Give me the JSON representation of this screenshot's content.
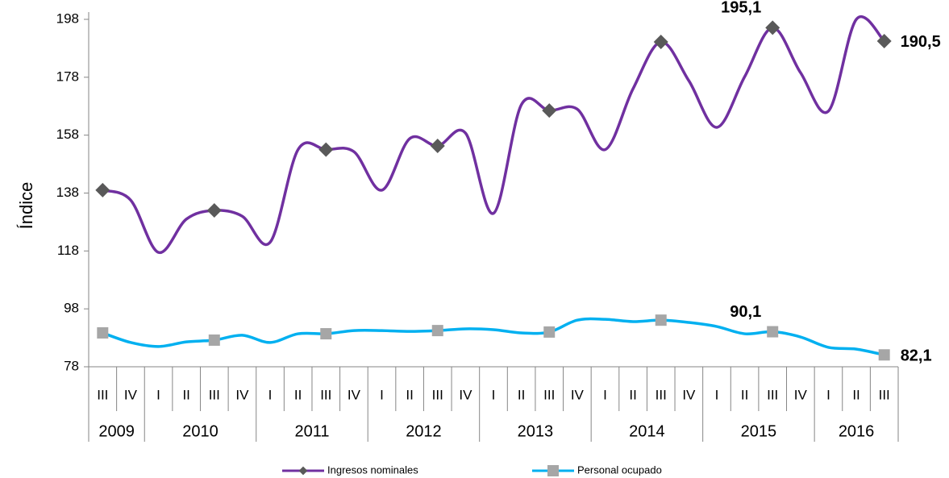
{
  "chart_data": {
    "type": "line",
    "y_label": "Índice",
    "groups": [
      {
        "name": "2009",
        "categories": [
          "III",
          "IV"
        ]
      },
      {
        "name": "2010",
        "categories": [
          "I",
          "II",
          "III",
          "IV"
        ]
      },
      {
        "name": "2011",
        "categories": [
          "I",
          "II",
          "III",
          "IV"
        ]
      },
      {
        "name": "2012",
        "categories": [
          "I",
          "II",
          "III",
          "IV"
        ]
      },
      {
        "name": "2013",
        "categories": [
          "I",
          "II",
          "III",
          "IV"
        ]
      },
      {
        "name": "2014",
        "categories": [
          "I",
          "II",
          "III",
          "IV"
        ]
      },
      {
        "name": "2015",
        "categories": [
          "I",
          "II",
          "III",
          "IV"
        ]
      },
      {
        "name": "2016",
        "categories": [
          "I",
          "II",
          "III"
        ]
      }
    ],
    "series": [
      {
        "name": "Ingresos nominales",
        "color": "#7030a0",
        "marker": "diamond",
        "marker_color": "#595959",
        "label_color": "#6e6aa0",
        "values": [
          139,
          135.6,
          117.5,
          129,
          132,
          130,
          121,
          153,
          153,
          152.3,
          139,
          156.8,
          154.3,
          158.7,
          131,
          168.5,
          166.5,
          167,
          153,
          174,
          190.2,
          176.8,
          160.7,
          178.2,
          195.1,
          179.6,
          166.3,
          198,
          190.5
        ],
        "value_labels": [
          null,
          null,
          null,
          null,
          null,
          null,
          null,
          null,
          null,
          null,
          null,
          null,
          null,
          null,
          null,
          null,
          null,
          null,
          null,
          null,
          null,
          null,
          null,
          null,
          "195,1",
          null,
          null,
          null,
          "190,5"
        ]
      },
      {
        "name": "Personal ocupado",
        "color": "#00b0f0",
        "marker": "square",
        "marker_color": "#a6a6a6",
        "label_color": "#00b0f0",
        "values": [
          89.7,
          86.4,
          85,
          86.6,
          87.2,
          88.9,
          86.4,
          89.4,
          89.4,
          90.5,
          90.5,
          90.2,
          90.5,
          91.1,
          90.8,
          89.7,
          90,
          94.1,
          94.4,
          93.6,
          94.1,
          93.3,
          91.9,
          89.4,
          90.1,
          88.3,
          84.7,
          84.1,
          82.1
        ],
        "value_labels": [
          null,
          null,
          null,
          null,
          null,
          null,
          null,
          null,
          null,
          null,
          null,
          null,
          null,
          null,
          null,
          null,
          null,
          null,
          null,
          null,
          null,
          null,
          null,
          null,
          "90,1",
          null,
          null,
          null,
          "82,1"
        ]
      }
    ],
    "ylim": [
      78,
      198
    ],
    "yticks": [
      78,
      98,
      118,
      138,
      158,
      178,
      198
    ],
    "grid": false,
    "legend": "bottom"
  }
}
